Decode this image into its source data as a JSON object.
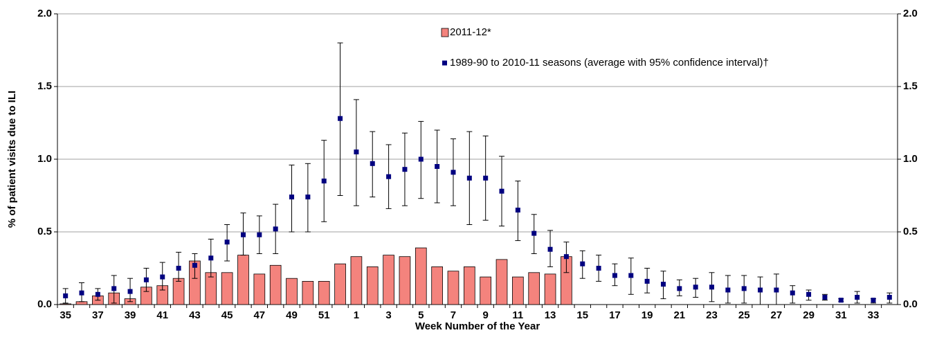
{
  "chart_data": {
    "type": "bar_with_error_markers",
    "x_label": "Week Number of the Year",
    "y_label": "% of patient visits due to ILI",
    "categories": [
      "35",
      null,
      "37",
      null,
      "39",
      null,
      "41",
      null,
      "43",
      null,
      "45",
      null,
      "47",
      null,
      "49",
      null,
      "51",
      null,
      "1",
      null,
      "3",
      null,
      "5",
      null,
      "7",
      null,
      "9",
      null,
      "11",
      null,
      "13",
      null,
      "15",
      null,
      "17",
      null,
      "19",
      null,
      "21",
      null,
      "23",
      null,
      "25",
      null,
      "27",
      null,
      "29",
      null,
      "31",
      null,
      "33",
      null
    ],
    "series": [
      {
        "name": "2011-12*",
        "kind": "bar",
        "color": "#f4837d",
        "values": [
          0.005,
          0.02,
          0.06,
          0.08,
          0.04,
          0.12,
          0.13,
          0.18,
          0.3,
          0.22,
          0.22,
          0.34,
          0.21,
          0.27,
          0.18,
          0.16,
          0.16,
          0.28,
          0.33,
          0.26,
          0.34,
          0.33,
          0.39,
          0.26,
          0.23,
          0.26,
          0.19,
          0.31,
          0.19,
          0.22,
          0.21,
          0.33,
          null,
          null,
          null,
          null,
          null,
          null,
          null,
          null,
          null,
          null,
          null,
          null,
          null,
          null,
          null,
          null,
          null,
          null,
          null,
          null
        ]
      },
      {
        "name": "1989-90 to 2010-11 seasons (average with 95% confidence interval)†",
        "kind": "marker",
        "color": "#000080",
        "values": [
          0.06,
          0.08,
          0.07,
          0.11,
          0.09,
          0.17,
          0.19,
          0.25,
          0.27,
          0.32,
          0.43,
          0.48,
          0.48,
          0.52,
          0.74,
          0.74,
          0.85,
          1.28,
          1.05,
          0.97,
          0.88,
          0.93,
          1.0,
          0.95,
          0.91,
          0.87,
          0.87,
          0.78,
          0.65,
          0.49,
          0.38,
          0.33,
          0.28,
          0.25,
          0.2,
          0.2,
          0.16,
          0.14,
          0.11,
          0.12,
          0.12,
          0.1,
          0.11,
          0.1,
          0.1,
          0.08,
          0.07,
          0.05,
          0.03,
          0.05,
          0.03,
          0.05
        ],
        "lower": [
          0.01,
          0.02,
          0.03,
          0.01,
          0.02,
          0.09,
          0.1,
          0.16,
          0.18,
          0.19,
          0.3,
          0.34,
          0.35,
          0.35,
          0.5,
          0.5,
          0.57,
          0.75,
          0.68,
          0.74,
          0.66,
          0.68,
          0.73,
          0.7,
          0.68,
          0.55,
          0.58,
          0.54,
          0.44,
          0.35,
          0.26,
          0.22,
          0.18,
          0.16,
          0.13,
          0.07,
          0.08,
          0.04,
          0.06,
          0.05,
          0.02,
          0.01,
          0.01,
          0.0,
          0.0,
          0.01,
          0.03,
          0.03,
          0.02,
          0.01,
          0.01,
          0.01
        ],
        "upper": [
          0.11,
          0.15,
          0.11,
          0.2,
          0.18,
          0.25,
          0.29,
          0.36,
          0.35,
          0.45,
          0.55,
          0.63,
          0.61,
          0.69,
          0.96,
          0.97,
          1.13,
          1.8,
          1.41,
          1.19,
          1.1,
          1.18,
          1.26,
          1.2,
          1.14,
          1.19,
          1.16,
          1.02,
          0.85,
          0.62,
          0.51,
          0.43,
          0.37,
          0.34,
          0.28,
          0.32,
          0.25,
          0.23,
          0.17,
          0.18,
          0.22,
          0.2,
          0.2,
          0.19,
          0.21,
          0.13,
          0.1,
          0.07,
          0.04,
          0.09,
          0.04,
          0.08
        ]
      }
    ],
    "ylim": [
      0,
      2
    ],
    "yticks": [
      {
        "value": 0,
        "label": "0.0"
      },
      0.5,
      {
        "value": 1,
        "label": "1.0"
      },
      1.5,
      {
        "value": 2,
        "label": "2.0"
      }
    ],
    "y2lim": [
      0,
      2
    ],
    "y2ticks": [
      {
        "value": 0,
        "label": "0.0"
      },
      0.5,
      {
        "value": 1,
        "label": "1.0"
      },
      1.5,
      {
        "value": 2,
        "label": "2.0"
      }
    ],
    "grid": true,
    "legend_position": "top"
  }
}
